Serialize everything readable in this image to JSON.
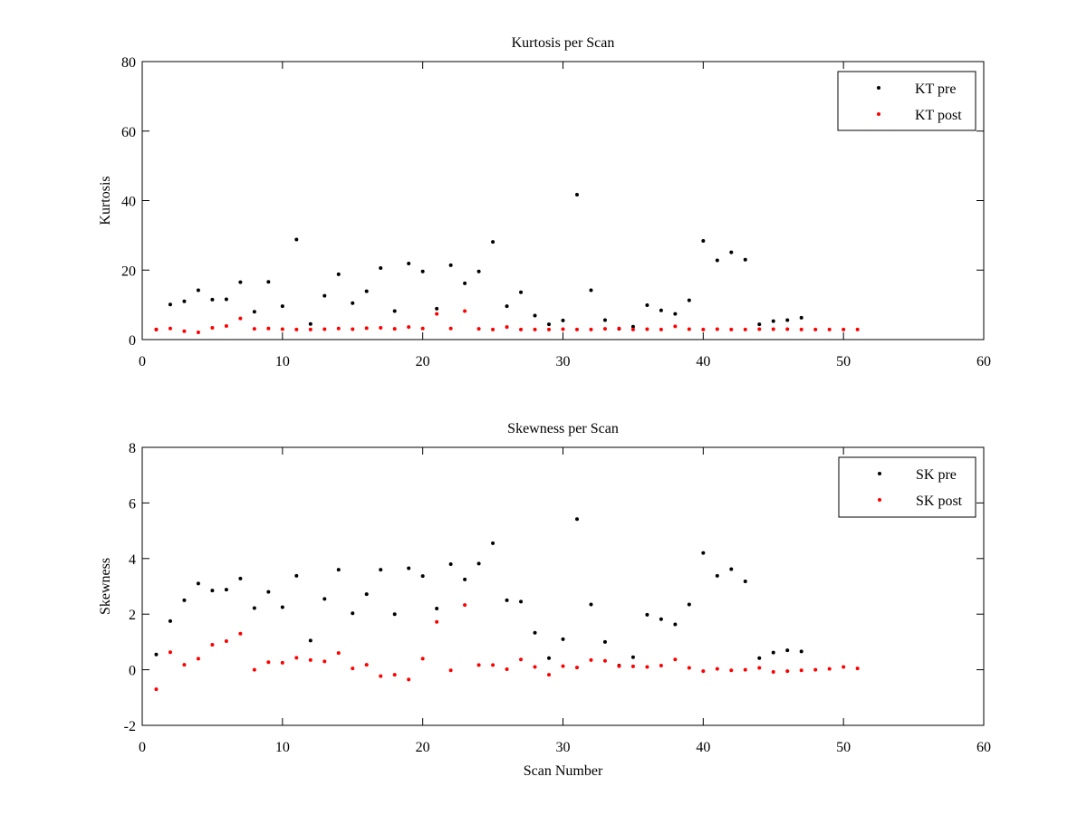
{
  "chart_data": [
    {
      "type": "scatter",
      "title": "Kurtosis per Scan",
      "xlabel": "",
      "ylabel": "Kurtosis",
      "xlim": [
        0,
        60
      ],
      "ylim": [
        0,
        80
      ],
      "xticks": [
        0,
        10,
        20,
        30,
        40,
        50,
        60
      ],
      "yticks": [
        0,
        20,
        40,
        60,
        80
      ],
      "legend_position": "top-right",
      "series": [
        {
          "name": "KT pre",
          "color": "#000000",
          "x": [
            1,
            2,
            3,
            4,
            5,
            6,
            7,
            8,
            9,
            10,
            11,
            12,
            13,
            14,
            15,
            16,
            17,
            18,
            19,
            20,
            21,
            22,
            23,
            24,
            25,
            26,
            27,
            28,
            29,
            30,
            31,
            32,
            33,
            34,
            35,
            36,
            37,
            38,
            39,
            40,
            41,
            42,
            43,
            44,
            45,
            46,
            47
          ],
          "y": [
            2.9,
            10.1,
            11.0,
            14.2,
            11.5,
            11.6,
            16.5,
            8.0,
            16.6,
            9.6,
            28.8,
            4.5,
            12.6,
            18.8,
            10.5,
            13.9,
            20.6,
            8.2,
            21.9,
            19.6,
            8.9,
            21.4,
            16.2,
            19.6,
            28.1,
            9.6,
            13.6,
            6.9,
            4.4,
            5.5,
            41.7,
            14.2,
            5.6,
            3.1,
            3.7,
            9.9,
            8.4,
            7.4,
            11.3,
            28.4,
            22.8,
            25.1,
            23.0,
            4.4,
            5.3,
            5.6,
            6.3
          ]
        },
        {
          "name": "KT post",
          "color": "#ff0000",
          "x": [
            1,
            2,
            3,
            4,
            5,
            6,
            7,
            8,
            9,
            10,
            11,
            12,
            13,
            14,
            15,
            16,
            17,
            18,
            19,
            20,
            21,
            22,
            23,
            24,
            25,
            26,
            27,
            28,
            29,
            30,
            31,
            32,
            33,
            34,
            35,
            36,
            37,
            38,
            39,
            40,
            41,
            42,
            43,
            44,
            45,
            46,
            47,
            48,
            49,
            50,
            51
          ],
          "y": [
            2.9,
            3.2,
            2.4,
            2.1,
            3.4,
            3.9,
            6.1,
            3.1,
            3.2,
            3.0,
            2.9,
            2.9,
            3.0,
            3.2,
            3.0,
            3.3,
            3.4,
            3.1,
            3.6,
            3.2,
            7.4,
            3.2,
            8.2,
            3.1,
            2.9,
            3.6,
            2.9,
            2.9,
            2.9,
            3.0,
            2.9,
            2.9,
            3.1,
            3.2,
            2.9,
            3.0,
            2.9,
            3.8,
            3.0,
            2.9,
            3.0,
            2.9,
            2.9,
            3.0,
            3.0,
            3.0,
            2.9,
            2.9,
            2.9,
            2.9,
            2.9
          ]
        }
      ]
    },
    {
      "type": "scatter",
      "title": "Skewness per Scan",
      "xlabel": "Scan Number",
      "ylabel": "Skewness",
      "xlim": [
        0,
        60
      ],
      "ylim": [
        -2,
        8
      ],
      "xticks": [
        0,
        10,
        20,
        30,
        40,
        50,
        60
      ],
      "yticks": [
        -2,
        0,
        2,
        4,
        6,
        8
      ],
      "legend_position": "top-right",
      "series": [
        {
          "name": "SK pre",
          "color": "#000000",
          "x": [
            1,
            2,
            3,
            4,
            5,
            6,
            7,
            8,
            9,
            10,
            11,
            12,
            13,
            14,
            15,
            16,
            17,
            18,
            19,
            20,
            21,
            22,
            23,
            24,
            25,
            26,
            27,
            28,
            29,
            30,
            31,
            32,
            33,
            34,
            35,
            36,
            37,
            38,
            39,
            40,
            41,
            42,
            43,
            44,
            45,
            46,
            47
          ],
          "y": [
            0.55,
            1.75,
            2.5,
            3.1,
            2.85,
            2.88,
            3.28,
            2.22,
            2.8,
            2.25,
            3.38,
            1.05,
            2.55,
            3.6,
            2.03,
            2.72,
            3.6,
            2.0,
            3.65,
            3.37,
            2.2,
            3.8,
            3.25,
            3.82,
            4.55,
            2.5,
            2.45,
            1.33,
            0.42,
            1.1,
            5.42,
            2.35,
            1.0,
            0.15,
            0.45,
            1.98,
            1.82,
            1.63,
            2.35,
            4.2,
            3.38,
            3.62,
            3.18,
            0.42,
            0.62,
            0.7,
            0.66
          ]
        },
        {
          "name": "SK post",
          "color": "#ff0000",
          "x": [
            1,
            2,
            3,
            4,
            5,
            6,
            7,
            8,
            9,
            10,
            11,
            12,
            13,
            14,
            15,
            16,
            17,
            18,
            19,
            20,
            21,
            22,
            23,
            24,
            25,
            26,
            27,
            28,
            29,
            30,
            31,
            32,
            33,
            34,
            35,
            36,
            37,
            38,
            39,
            40,
            41,
            42,
            43,
            44,
            45,
            46,
            47,
            48,
            49,
            50,
            51
          ],
          "y": [
            -0.7,
            0.63,
            0.18,
            0.4,
            0.9,
            1.03,
            1.3,
            0.0,
            0.27,
            0.25,
            0.43,
            0.35,
            0.3,
            0.6,
            0.05,
            0.18,
            -0.23,
            -0.18,
            -0.35,
            0.4,
            1.72,
            -0.02,
            2.33,
            0.17,
            0.17,
            0.02,
            0.37,
            0.1,
            -0.18,
            0.13,
            0.08,
            0.35,
            0.32,
            0.13,
            0.12,
            0.1,
            0.15,
            0.37,
            0.07,
            -0.05,
            0.03,
            -0.02,
            0.0,
            0.07,
            -0.08,
            -0.05,
            -0.02,
            0.0,
            0.03,
            0.1,
            0.05
          ]
        }
      ]
    }
  ]
}
